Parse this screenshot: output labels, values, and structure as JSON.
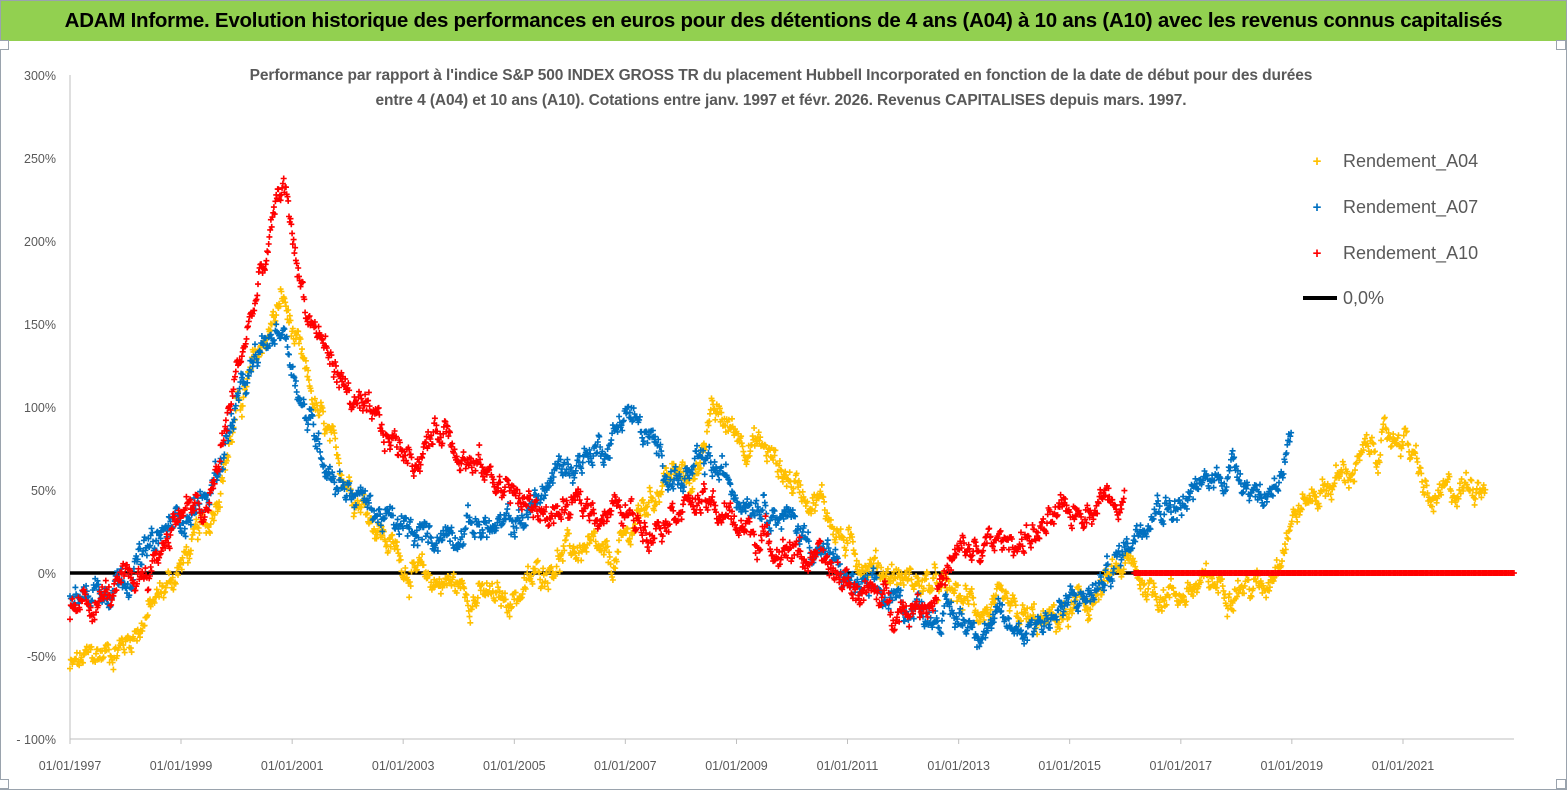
{
  "banner": {
    "text": "ADAM Informe. Evolution historique des performances en euros pour des détentions de 4 ans (A04) à 10 ans (A10) avec les revenus connus capitalisés"
  },
  "chart_data": {
    "type": "scatter",
    "title_lines": [
      "Performance par rapport à l'indice S&P 500 INDEX GROSS TR  du placement Hubbell Incorporated en fonction de la date de début pour des durées",
      "entre 4 (A04) et 10 ans (A10).  Cotations entre janv. 1997 et févr. 2026. Revenus  CAPITALISES depuis mars. 1997."
    ],
    "x_tick_labels": [
      "01/01/1997",
      "01/01/1999",
      "01/01/2001",
      "01/01/2003",
      "01/01/2005",
      "01/01/2007",
      "01/01/2009",
      "01/01/2011",
      "01/01/2013",
      "01/01/2015",
      "01/01/2017",
      "01/01/2019",
      "01/01/2021"
    ],
    "x_range": [
      "1997-01-01",
      "2023-01-01"
    ],
    "y_tick_labels": [
      "300%",
      "250%",
      "200%",
      "150%",
      "100%",
      "50%",
      "0%",
      "-50%",
      "- 100%"
    ],
    "y_range": [
      -100,
      300
    ],
    "y_unit": "%",
    "grid": false,
    "legend_position": "top-right",
    "reference_line": {
      "name": "0,0%",
      "y": 0,
      "color": "#000000"
    },
    "series": [
      {
        "name": "Rendement_A04",
        "color": "#ffc000",
        "marker": "+",
        "x": [
          "1997-01",
          "1997-07",
          "1998-01",
          "1998-07",
          "1999-01",
          "1999-07",
          "2000-01",
          "2000-07",
          "2000-11",
          "2001-04",
          "2001-10",
          "2002-04",
          "2002-10",
          "2003-04",
          "2003-10",
          "2004-04",
          "2004-10",
          "2005-04",
          "2005-10",
          "2006-04",
          "2006-10",
          "2007-04",
          "2007-10",
          "2008-04",
          "2008-07",
          "2009-01",
          "2009-07",
          "2010-01",
          "2010-07",
          "2011-01",
          "2011-07",
          "2012-01",
          "2012-07",
          "2013-01",
          "2013-07",
          "2014-01",
          "2014-07",
          "2015-01",
          "2015-07",
          "2016-01",
          "2016-07",
          "2017-01",
          "2017-07",
          "2018-01",
          "2018-07",
          "2019-01",
          "2019-07",
          "2020-01",
          "2020-07",
          "2021-01",
          "2021-07",
          "2022-01",
          "2022-07"
        ],
        "y": [
          -58,
          -50,
          -42,
          -20,
          5,
          30,
          95,
          140,
          165,
          115,
          70,
          45,
          18,
          -3,
          -5,
          -12,
          -18,
          -8,
          10,
          15,
          2,
          35,
          60,
          55,
          95,
          85,
          75,
          55,
          45,
          15,
          5,
          -3,
          -8,
          -15,
          -22,
          -28,
          -32,
          -25,
          -15,
          5,
          -10,
          -12,
          -8,
          -5,
          -10,
          35,
          50,
          60,
          75,
          85,
          40,
          50,
          60
        ]
      },
      {
        "name": "Rendement_A07",
        "color": "#0070c0",
        "marker": "+",
        "x": [
          "1997-01",
          "1997-07",
          "1998-01",
          "1998-07",
          "1999-01",
          "1999-07",
          "2000-01",
          "2000-07",
          "2000-11",
          "2001-04",
          "2001-10",
          "2002-04",
          "2002-10",
          "2003-04",
          "2003-10",
          "2004-04",
          "2004-10",
          "2005-04",
          "2005-10",
          "2006-04",
          "2006-10",
          "2007-01",
          "2007-07",
          "2008-01",
          "2008-07",
          "2009-01",
          "2009-07",
          "2010-01",
          "2010-07",
          "2011-01",
          "2011-07",
          "2012-01",
          "2012-07",
          "2013-01",
          "2013-07",
          "2014-01",
          "2014-07",
          "2015-01",
          "2015-07",
          "2016-01",
          "2016-07",
          "2017-01",
          "2017-07",
          "2018-01",
          "2018-07",
          "2019-01"
        ],
        "y": [
          -20,
          -8,
          0,
          15,
          35,
          45,
          100,
          135,
          150,
          95,
          60,
          45,
          30,
          20,
          25,
          30,
          25,
          35,
          60,
          70,
          80,
          100,
          75,
          55,
          65,
          50,
          45,
          30,
          15,
          -5,
          -15,
          -20,
          -22,
          -28,
          -30,
          -33,
          -28,
          -20,
          -10,
          15,
          45,
          40,
          55,
          65,
          45,
          75
        ]
      },
      {
        "name": "Rendement_A10",
        "color": "#ff0000",
        "marker": "+",
        "x": [
          "1997-01",
          "1997-07",
          "1998-01",
          "1998-07",
          "1999-01",
          "1999-07",
          "2000-01",
          "2000-07",
          "2000-11",
          "2001-04",
          "2001-10",
          "2002-04",
          "2002-10",
          "2003-04",
          "2003-10",
          "2004-04",
          "2004-10",
          "2005-04",
          "2005-10",
          "2006-04",
          "2006-10",
          "2007-01",
          "2007-07",
          "2008-01",
          "2008-07",
          "2009-01",
          "2009-07",
          "2010-01",
          "2010-07",
          "2011-01",
          "2011-07",
          "2012-01",
          "2012-07",
          "2013-01",
          "2013-07",
          "2014-01",
          "2014-07",
          "2015-01",
          "2015-07",
          "2016-01"
        ],
        "y": [
          -28,
          -15,
          -10,
          5,
          40,
          35,
          120,
          185,
          235,
          160,
          125,
          95,
          80,
          70,
          90,
          65,
          55,
          40,
          35,
          40,
          38,
          35,
          30,
          45,
          40,
          30,
          20,
          15,
          5,
          -5,
          -15,
          -20,
          -15,
          10,
          15,
          20,
          25,
          35,
          45,
          50
        ]
      },
      {
        "name": "Rendement_A10 (zero)",
        "color": "#ff0000",
        "marker": "+",
        "x": [
          "2016-03",
          "2023-01"
        ],
        "y": [
          0,
          0
        ]
      }
    ]
  },
  "legend": [
    {
      "label": "Rendement_A04",
      "color": "#ffc000",
      "symbol": "+"
    },
    {
      "label": "Rendement_A07",
      "color": "#0070c0",
      "symbol": "+"
    },
    {
      "label": "Rendement_A10",
      "color": "#ff0000",
      "symbol": "+"
    },
    {
      "label": "0,0%",
      "color": "#000000",
      "symbol": "line"
    }
  ]
}
